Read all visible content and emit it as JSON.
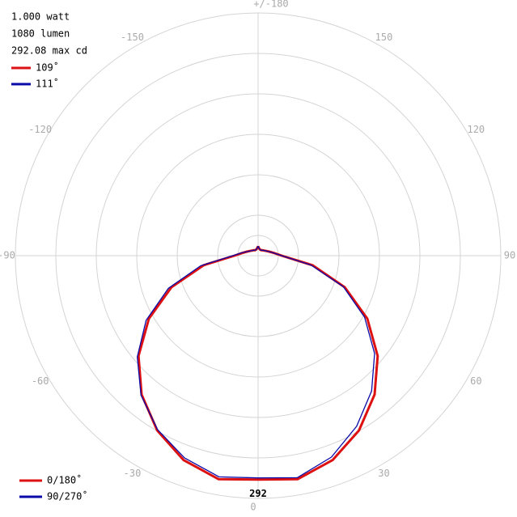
{
  "chart_data": {
    "type": "polar",
    "info": [
      "1.000 watt",
      "1080 lumen",
      "292.08 max cd"
    ],
    "x": [
      -180,
      -170,
      -160,
      -150,
      -140,
      -130,
      -120,
      -110,
      -100,
      -90,
      -80,
      -70,
      -60,
      -50,
      -40,
      -30,
      -20,
      -10,
      0,
      10,
      20,
      30,
      40,
      50,
      60,
      70,
      80,
      90,
      100,
      110,
      120,
      130,
      140,
      150,
      160,
      170,
      180
    ],
    "series": [
      {
        "name": "0/180˚",
        "beam_angle": "109˚",
        "color": "#dd1111",
        "values": [
          12,
          9,
          8,
          8,
          9,
          10,
          12,
          15,
          20,
          30,
          70,
          117,
          160,
          198,
          230,
          256,
          276,
          288,
          284,
          288,
          276,
          256,
          230,
          198,
          160,
          117,
          70,
          30,
          20,
          15,
          12,
          10,
          9,
          8,
          8,
          9,
          12
        ]
      },
      {
        "name": "90/270˚",
        "beam_angle": "111˚",
        "color": "#0a0aa8",
        "values": [
          12,
          9,
          8,
          8,
          9,
          10,
          12,
          15,
          21,
          32,
          74,
          121,
          164,
          200,
          231,
          255,
          273,
          285,
          282,
          286,
          272,
          250,
          224,
          193,
          156,
          115,
          68,
          30,
          20,
          15,
          12,
          10,
          9,
          8,
          8,
          9,
          12
        ]
      }
    ],
    "peak_label": "292",
    "rlim": [
      0,
      310
    ],
    "xticks": [
      -150,
      -120,
      -90,
      -60,
      -30,
      0,
      30,
      60,
      90,
      120,
      150,
      {
        "value": 180,
        "label": "+/-180"
      }
    ],
    "grid": true
  }
}
